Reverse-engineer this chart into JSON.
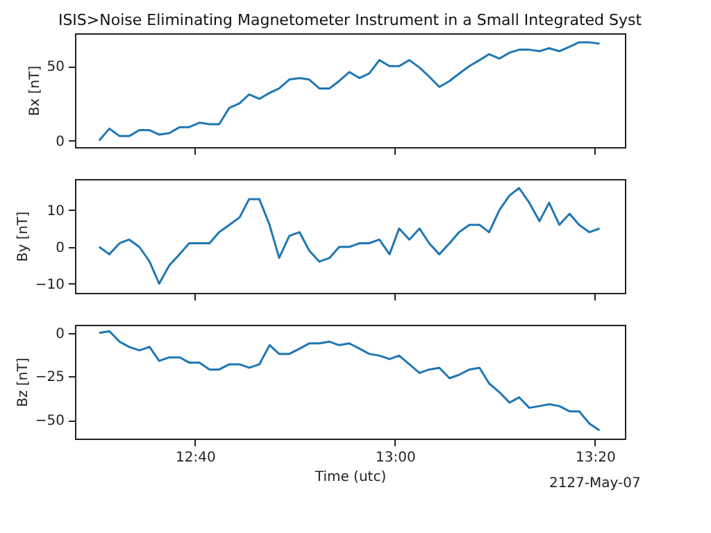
{
  "chart_data": [
    {
      "type": "line",
      "title": "ISIS>Noise Eliminating Magnetometer Instrument in a Small Integrated Syst",
      "ylabel": "Bx [nT]",
      "tick_labels": "y",
      "x": [
        12.507,
        12.524,
        12.541,
        12.557,
        12.574,
        12.591,
        12.607,
        12.624,
        12.641,
        12.657,
        12.674,
        12.691,
        12.707,
        12.724,
        12.741,
        12.757,
        12.774,
        12.791,
        12.807,
        12.824,
        12.841,
        12.857,
        12.874,
        12.891,
        12.907,
        12.924,
        12.941,
        12.957,
        12.974,
        12.991,
        13.007,
        13.024,
        13.041,
        13.057,
        13.074,
        13.091,
        13.107,
        13.124,
        13.141,
        13.157,
        13.174,
        13.191,
        13.207,
        13.224,
        13.241,
        13.257,
        13.274,
        13.291,
        13.307,
        13.324,
        13.341
      ],
      "series": [
        {
          "color": "#1f77b4",
          "values": [
            0,
            8,
            3,
            3,
            7,
            7,
            4,
            5,
            9,
            9,
            12,
            11,
            11,
            22,
            25,
            31,
            28,
            32,
            35,
            41,
            42,
            41,
            35,
            35,
            40,
            46,
            42,
            45,
            54,
            50,
            50,
            54,
            49,
            43,
            36,
            40,
            45,
            50,
            54,
            58,
            55,
            59,
            61,
            61,
            60,
            62,
            60,
            63,
            66,
            66,
            65
          ]
        }
      ],
      "xlim": [
        12.4667,
        13.3833
      ],
      "xticks": [
        {
          "value": 12.6667,
          "label": null
        },
        {
          "value": 13.0,
          "label": null
        },
        {
          "value": 13.3333,
          "label": null
        }
      ],
      "ylim": [
        -4.4,
        72
      ],
      "yticks": [
        0,
        50
      ]
    },
    {
      "type": "line",
      "ylabel": "By [nT]",
      "tick_labels": "y",
      "x": [
        12.507,
        12.524,
        12.541,
        12.557,
        12.574,
        12.591,
        12.607,
        12.624,
        12.641,
        12.657,
        12.674,
        12.691,
        12.707,
        12.724,
        12.741,
        12.757,
        12.774,
        12.791,
        12.807,
        12.824,
        12.841,
        12.857,
        12.874,
        12.891,
        12.907,
        12.924,
        12.941,
        12.957,
        12.974,
        12.991,
        13.007,
        13.024,
        13.041,
        13.057,
        13.074,
        13.091,
        13.107,
        13.124,
        13.141,
        13.157,
        13.174,
        13.191,
        13.207,
        13.224,
        13.241,
        13.257,
        13.274,
        13.291,
        13.307,
        13.324,
        13.341
      ],
      "series": [
        {
          "color": "#1f77b4",
          "values": [
            0,
            -2,
            1,
            2,
            0,
            -4,
            -10,
            -5,
            -2,
            1,
            1,
            1,
            4,
            6,
            8,
            13,
            13,
            6,
            -3,
            3,
            4,
            -1,
            -4,
            -3,
            0,
            0,
            1,
            1,
            2,
            -2,
            5,
            2,
            5,
            1,
            -2,
            1,
            4,
            6,
            6,
            4,
            10,
            14,
            16,
            12,
            7,
            12,
            6,
            9,
            6,
            4,
            5
          ]
        }
      ],
      "xlim": [
        12.4667,
        13.3833
      ],
      "xticks": [
        {
          "value": 12.6667,
          "label": null
        },
        {
          "value": 13.0,
          "label": null
        },
        {
          "value": 13.3333,
          "label": null
        }
      ],
      "ylim": [
        -12.5,
        18.45
      ],
      "yticks": [
        -10,
        0,
        10
      ]
    },
    {
      "type": "line",
      "ylabel": "Bz [nT]",
      "xlabel": "Time (utc)",
      "annotations": [
        "2127-May-07"
      ],
      "x": [
        12.507,
        12.524,
        12.541,
        12.557,
        12.574,
        12.591,
        12.607,
        12.624,
        12.641,
        12.657,
        12.674,
        12.691,
        12.707,
        12.724,
        12.741,
        12.757,
        12.774,
        12.791,
        12.807,
        12.824,
        12.841,
        12.857,
        12.874,
        12.891,
        12.907,
        12.924,
        12.941,
        12.957,
        12.974,
        12.991,
        13.007,
        13.024,
        13.041,
        13.057,
        13.074,
        13.091,
        13.107,
        13.124,
        13.141,
        13.157,
        13.174,
        13.191,
        13.207,
        13.224,
        13.241,
        13.257,
        13.274,
        13.291,
        13.307,
        13.324,
        13.341
      ],
      "series": [
        {
          "color": "#1f77b4",
          "values": [
            0,
            1,
            -5,
            -8,
            -10,
            -8,
            -16,
            -14,
            -14,
            -17,
            -17,
            -21,
            -21,
            -18,
            -18,
            -20,
            -18,
            -7,
            -12,
            -12,
            -9,
            -6,
            -6,
            -5,
            -7,
            -6,
            -9,
            -12,
            -13,
            -15,
            -13,
            -18,
            -23,
            -21,
            -20,
            -26,
            -24,
            -21,
            -20,
            -29,
            -34,
            -40,
            -37,
            -43,
            -42,
            -41,
            -42,
            -45,
            -45,
            -52,
            -56
          ]
        }
      ],
      "xlim": [
        12.4667,
        13.3833
      ],
      "xticks": [
        {
          "value": 12.6667,
          "label": "12:40"
        },
        {
          "value": 13.0,
          "label": "13:00"
        },
        {
          "value": 13.3333,
          "label": "13:20"
        }
      ],
      "ylim": [
        -60.7,
        4.7
      ],
      "yticks": [
        -50,
        -25,
        0
      ]
    }
  ]
}
